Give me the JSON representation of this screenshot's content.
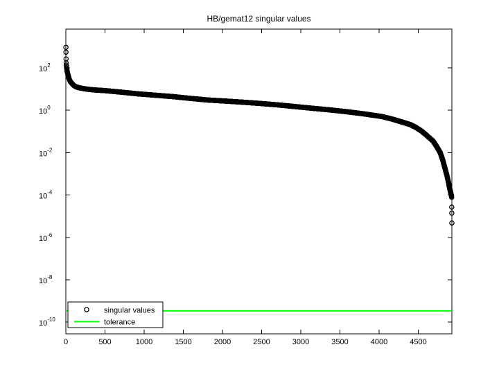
{
  "title": "HB/gemat12 singular values",
  "colors": {
    "background": "#ffffff",
    "axis": "#000000",
    "marker": "#000000",
    "tolerance": "#00ff00"
  },
  "legend": {
    "items": [
      {
        "label": "singular values",
        "symbol": "circle-marker"
      },
      {
        "label": "tolerance",
        "symbol": "green-line"
      }
    ]
  },
  "chart_data": {
    "type": "scatter",
    "title": "HB/gemat12 singular values",
    "xlabel": "",
    "ylabel": "",
    "x_scale": "linear",
    "y_scale": "log",
    "grid": false,
    "legend_position": "southwest",
    "xlim": [
      0,
      4929
    ],
    "ylim_log10": [
      -10.4,
      3.8
    ],
    "x_ticks": [
      0,
      500,
      1000,
      1500,
      2000,
      2500,
      3000,
      3500,
      4000,
      4500
    ],
    "y_tick_exponents": [
      2,
      0,
      -2,
      -4,
      -6,
      -8,
      -10
    ],
    "series": [
      {
        "name": "singular values",
        "marker": "o",
        "color": "#000000",
        "n_points": 4929,
        "control_points": [
          [
            1,
            930
          ],
          [
            2,
            550
          ],
          [
            3,
            263
          ],
          [
            4,
            170
          ],
          [
            6,
            135
          ],
          [
            10,
            100
          ],
          [
            15,
            75
          ],
          [
            20,
            60
          ],
          [
            30,
            44
          ],
          [
            45,
            28
          ],
          [
            60,
            22
          ],
          [
            80,
            18
          ],
          [
            100,
            15
          ],
          [
            130,
            12.8
          ],
          [
            170,
            11.5
          ],
          [
            220,
            10.6
          ],
          [
            280,
            9.8
          ],
          [
            350,
            9.2
          ],
          [
            490,
            8.5
          ],
          [
            700,
            7.2
          ],
          [
            930,
            5.9
          ],
          [
            1150,
            5.1
          ],
          [
            1370,
            4.4
          ],
          [
            1600,
            3.6
          ],
          [
            1810,
            3.05
          ],
          [
            2050,
            2.7
          ],
          [
            2260,
            2.4
          ],
          [
            2480,
            2.1
          ],
          [
            2700,
            1.8
          ],
          [
            2920,
            1.5
          ],
          [
            3140,
            1.25
          ],
          [
            3360,
            1.05
          ],
          [
            3580,
            0.86
          ],
          [
            3800,
            0.68
          ],
          [
            4030,
            0.51
          ],
          [
            4160,
            0.39
          ],
          [
            4290,
            0.28
          ],
          [
            4400,
            0.21
          ],
          [
            4470,
            0.155
          ],
          [
            4540,
            0.105
          ],
          [
            4600,
            0.069
          ],
          [
            4650,
            0.047
          ],
          [
            4690,
            0.035
          ],
          [
            4740,
            0.018
          ],
          [
            4780,
            0.01
          ],
          [
            4810,
            0.0048
          ],
          [
            4840,
            0.0019
          ],
          [
            4865,
            0.00085
          ],
          [
            4885,
            0.00041
          ],
          [
            4900,
            0.00021
          ],
          [
            4912,
            0.00014
          ],
          [
            4920,
            0.000105
          ],
          [
            4925,
            8.8e-05
          ]
        ],
        "tail_points": [
          [
            4926,
            7.8e-05
          ],
          [
            4927,
            2.7e-05
          ],
          [
            4928,
            1.4e-05
          ],
          [
            4929,
            4.8e-06
          ]
        ]
      },
      {
        "name": "tolerance",
        "style": "hline",
        "color": "#00ff00",
        "value": 3.4e-10
      }
    ]
  }
}
